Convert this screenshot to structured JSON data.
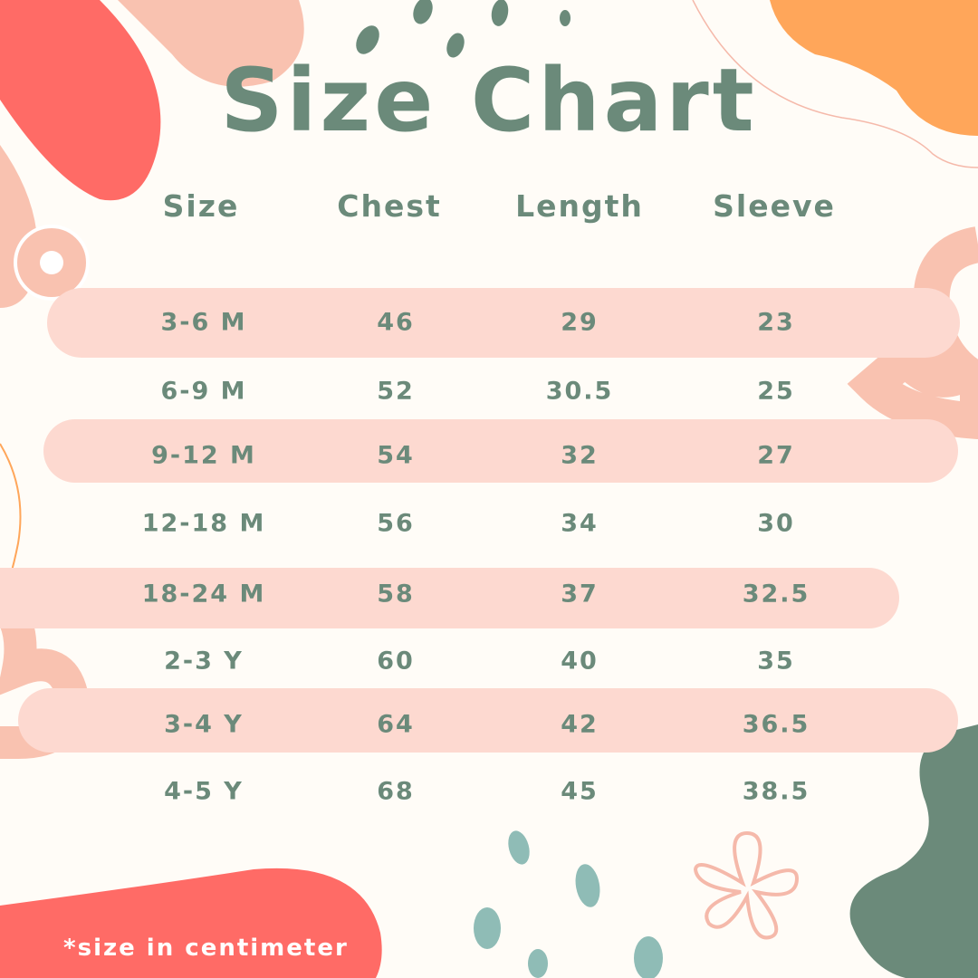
{
  "title": "Size Chart",
  "colors": {
    "text": "#6b8a7a",
    "band": "#fdd9d0",
    "background": "#fffcf7",
    "red": "#ff6b66",
    "orange": "#ffa65a",
    "peach": "#f9c2b0",
    "teal": "#8fbcb6"
  },
  "headers": [
    "Size",
    "Chest",
    "Length",
    "Sleeve"
  ],
  "rows": [
    [
      "3-6 M",
      "46",
      "29",
      "23"
    ],
    [
      "6-9 M",
      "52",
      "30.5",
      "25"
    ],
    [
      "9-12 M",
      "54",
      "32",
      "27"
    ],
    [
      "12-18 M",
      "56",
      "34",
      "30"
    ],
    [
      "18-24 M",
      "58",
      "37",
      "32.5"
    ],
    [
      "2-3 Y",
      "60",
      "40",
      "35"
    ],
    [
      "3-4 Y",
      "64",
      "42",
      "36.5"
    ],
    [
      "4-5 Y",
      "68",
      "45",
      "38.5"
    ]
  ],
  "footnote": "*size in centimeter",
  "chart_data": {
    "type": "table",
    "title": "Size Chart",
    "columns": [
      "Size",
      "Chest",
      "Length",
      "Sleeve"
    ],
    "rows": [
      [
        "3-6 M",
        46,
        29,
        23
      ],
      [
        "6-9 M",
        52,
        30.5,
        25
      ],
      [
        "9-12 M",
        54,
        32,
        27
      ],
      [
        "12-18 M",
        56,
        34,
        30
      ],
      [
        "18-24 M",
        58,
        37,
        32.5
      ],
      [
        "2-3 Y",
        60,
        40,
        35
      ],
      [
        "3-4 Y",
        64,
        42,
        36.5
      ],
      [
        "4-5 Y",
        68,
        45,
        38.5
      ]
    ]
  }
}
